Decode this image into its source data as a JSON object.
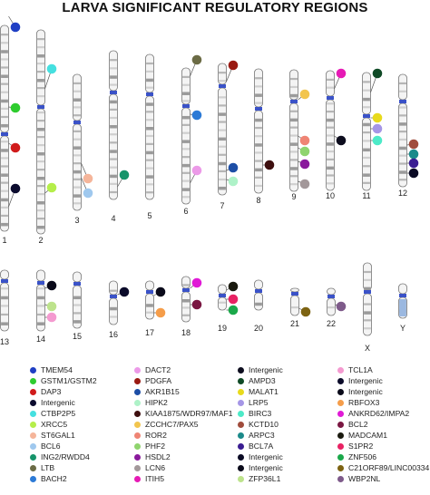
{
  "title": "LARVA SIGNIFICANT REGULATORY REGIONS",
  "chart_data": {
    "type": "ideogram",
    "chromosome_labels": [
      "1",
      "2",
      "3",
      "4",
      "5",
      "6",
      "7",
      "8",
      "9",
      "10",
      "11",
      "12",
      "13",
      "14",
      "15",
      "16",
      "17",
      "18",
      "19",
      "20",
      "21",
      "22",
      "X",
      "Y"
    ],
    "annotations": [
      {
        "chrom": "1",
        "color": "#1f3fc4"
      },
      {
        "chrom": "1",
        "color": "#2ecc2e"
      },
      {
        "chrom": "1",
        "color": "#d01b1b"
      },
      {
        "chrom": "1",
        "color": "#0b0b2e"
      },
      {
        "chrom": "2",
        "color": "#45e0e0"
      },
      {
        "chrom": "2",
        "color": "#b5ee4a"
      },
      {
        "chrom": "3",
        "color": "#f5b59a"
      },
      {
        "chrom": "3",
        "color": "#9fc8ee"
      },
      {
        "chrom": "4",
        "color": "#16946a"
      },
      {
        "chrom": "6",
        "color": "#6b6b45"
      },
      {
        "chrom": "6",
        "color": "#2c7ad6"
      },
      {
        "chrom": "6",
        "color": "#ec9ae8"
      },
      {
        "chrom": "7",
        "color": "#9a1a12"
      },
      {
        "chrom": "7",
        "color": "#1d4ea6"
      },
      {
        "chrom": "7",
        "color": "#aef2c8"
      },
      {
        "chrom": "8",
        "color": "#3e0f0f"
      },
      {
        "chrom": "9",
        "color": "#f2c54e"
      },
      {
        "chrom": "9",
        "color": "#ef8474"
      },
      {
        "chrom": "9",
        "color": "#8fd46e"
      },
      {
        "chrom": "9",
        "color": "#8a1a9c"
      },
      {
        "chrom": "9",
        "color": "#a3989a"
      },
      {
        "chrom": "10",
        "color": "#e61ab5"
      },
      {
        "chrom": "10",
        "color": "#0d0d1e"
      },
      {
        "chrom": "11",
        "color": "#0f4a26"
      },
      {
        "chrom": "11",
        "color": "#e8da1c"
      },
      {
        "chrom": "11",
        "color": "#a596e6"
      },
      {
        "chrom": "11",
        "color": "#4deac8"
      },
      {
        "chrom": "12",
        "color": "#a04c3c"
      },
      {
        "chrom": "12",
        "color": "#1b8a8a"
      },
      {
        "chrom": "12",
        "color": "#3a1d92"
      },
      {
        "chrom": "12",
        "color": "#0a0a24"
      },
      {
        "chrom": "14",
        "color": "#0a0a1a"
      },
      {
        "chrom": "14",
        "color": "#bde38c"
      },
      {
        "chrom": "14",
        "color": "#f49ad0"
      },
      {
        "chrom": "16",
        "color": "#0b0b2a"
      },
      {
        "chrom": "17",
        "color": "#0a0a1a"
      },
      {
        "chrom": "17",
        "color": "#f59d4a"
      },
      {
        "chrom": "18",
        "color": "#e01ad6"
      },
      {
        "chrom": "18",
        "color": "#7a1742"
      },
      {
        "chrom": "19",
        "color": "#1a1a0f"
      },
      {
        "chrom": "19",
        "color": "#e82263"
      },
      {
        "chrom": "19",
        "color": "#1aa84a"
      },
      {
        "chrom": "21",
        "color": "#7d6312"
      },
      {
        "chrom": "22",
        "color": "#7e5a8a"
      }
    ],
    "legend": [
      {
        "label": "TMEM54",
        "color": "#1f3fc4"
      },
      {
        "label": "GSTM1/GSTM2",
        "color": "#2ecc2e"
      },
      {
        "label": "DAP3",
        "color": "#d01b1b"
      },
      {
        "label": "Intergenic",
        "color": "#0b0b2e"
      },
      {
        "label": "CTBP2P5",
        "color": "#45e0e0"
      },
      {
        "label": "XRCC5",
        "color": "#b5ee4a"
      },
      {
        "label": "ST6GAL1",
        "color": "#f5b59a"
      },
      {
        "label": "BCL6",
        "color": "#9fc8ee"
      },
      {
        "label": "ING2/RWDD4",
        "color": "#16946a"
      },
      {
        "label": "LTB",
        "color": "#6b6b45"
      },
      {
        "label": "BACH2",
        "color": "#2c7ad6"
      },
      {
        "label": "DACT2",
        "color": "#ec9ae8"
      },
      {
        "label": "PDGFA",
        "color": "#9a1a12"
      },
      {
        "label": "AKR1B15",
        "color": "#1d4ea6"
      },
      {
        "label": "HIPK2",
        "color": "#aef2c8"
      },
      {
        "label": "KIAA1875/WDR97/MAF1",
        "color": "#3e0f0f"
      },
      {
        "label": "ZCCHC7/PAX5",
        "color": "#f2c54e"
      },
      {
        "label": "ROR2",
        "color": "#ef8474"
      },
      {
        "label": "PHF2",
        "color": "#8fd46e"
      },
      {
        "label": "HSDL2",
        "color": "#8a1a9c"
      },
      {
        "label": "LCN6",
        "color": "#a3989a"
      },
      {
        "label": "ITIH5",
        "color": "#e61ab5"
      },
      {
        "label": "Intergenic",
        "color": "#0d0d1e"
      },
      {
        "label": "AMPD3",
        "color": "#0f4a26"
      },
      {
        "label": "MALAT1",
        "color": "#e8da1c"
      },
      {
        "label": "LRP5",
        "color": "#a596e6"
      },
      {
        "label": "BIRC3",
        "color": "#4deac8"
      },
      {
        "label": "KCTD10",
        "color": "#a04c3c"
      },
      {
        "label": "ARPC3",
        "color": "#1b8a8a"
      },
      {
        "label": "BCL7A",
        "color": "#3a1d92"
      },
      {
        "label": "Intergenic",
        "color": "#0a0a24"
      },
      {
        "label": "Intergenic",
        "color": "#0a0a1a"
      },
      {
        "label": "ZFP36L1",
        "color": "#bde38c"
      },
      {
        "label": "TCL1A",
        "color": "#f49ad0"
      },
      {
        "label": "Intergenic",
        "color": "#0b0b2a"
      },
      {
        "label": "Intergenic",
        "color": "#0a0a1a"
      },
      {
        "label": "RBFOX3",
        "color": "#f59d4a"
      },
      {
        "label": "ANKRD62/IMPA2",
        "color": "#e01ad6"
      },
      {
        "label": "BCL2",
        "color": "#7a1742"
      },
      {
        "label": "MADCAM1",
        "color": "#1a1a0f"
      },
      {
        "label": "S1PR2",
        "color": "#e82263"
      },
      {
        "label": "ZNF506",
        "color": "#1aa84a"
      },
      {
        "label": "C21ORF89/LINC00334",
        "color": "#7d6312"
      },
      {
        "label": "WBP2NL",
        "color": "#7e5a8a"
      }
    ]
  }
}
